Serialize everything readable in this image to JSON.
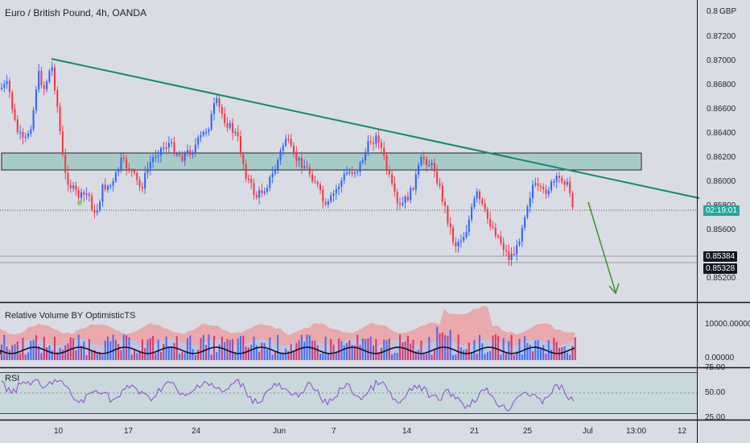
{
  "header": {
    "title": "Euro / British Pound, 4h, OANDA",
    "currency": "GBP"
  },
  "price_axis": {
    "ticks": [
      "0.8",
      "0.87200",
      "0.87000",
      "0.86800",
      "0.86600",
      "0.86400",
      "0.86200",
      "0.86000",
      "0.85800",
      "0.85600",
      "0.85200"
    ]
  },
  "tags": {
    "countdown": "02:19:01",
    "level_1": "0.85384",
    "level_2": "0.85328"
  },
  "volume_pane": {
    "title": "Relative Volume BY OptimisticTS",
    "ticks": [
      "10000.00000",
      "0.00000"
    ]
  },
  "rsi_pane": {
    "title": "RSI",
    "ticks": [
      "75.00",
      "50.00",
      "25.00"
    ]
  },
  "time_axis": {
    "labels": [
      "10",
      "17",
      "24",
      "Jun",
      "7",
      "14",
      "21",
      "25",
      "Jul",
      "13:00",
      "12"
    ]
  },
  "colors": {
    "background": "#d9dce3",
    "bull": "#2962ff",
    "bear": "#f23645",
    "trendline": "#138a6a",
    "zone": "#a9cbc8",
    "arrow": "#3f8f33",
    "rsi": "#8a4fc7",
    "countdown_tag": "#26a69a",
    "level_tag": "#131722"
  },
  "icons": [
    "down-arrow-icon",
    "signal-dot-icon"
  ]
}
